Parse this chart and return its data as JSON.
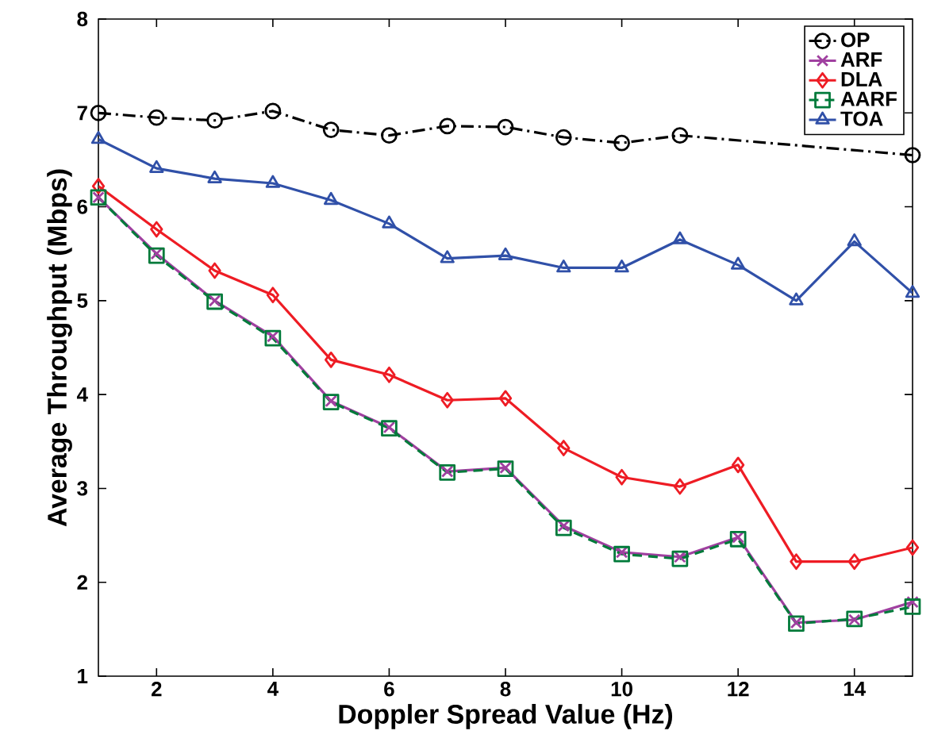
{
  "chart_data": {
    "type": "line",
    "xlabel": "Doppler Spread Value (Hz)",
    "ylabel": "Average Throughput (Mbps)",
    "x": [
      1,
      2,
      3,
      4,
      5,
      6,
      7,
      8,
      9,
      10,
      11,
      12,
      13,
      14,
      15
    ],
    "xlim": [
      1,
      15
    ],
    "xticks": [
      2,
      4,
      6,
      8,
      10,
      12,
      14
    ],
    "ylim": [
      1,
      8
    ],
    "yticks": [
      1,
      2,
      3,
      4,
      5,
      6,
      7,
      8
    ],
    "grid": false,
    "legend": "top right",
    "series": [
      {
        "name": "OP",
        "color": "#000000",
        "marker": "circle",
        "line_style": "dashdot",
        "values": [
          7.0,
          6.95,
          6.92,
          7.02,
          6.82,
          6.76,
          6.86,
          6.85,
          6.74,
          6.68,
          6.76,
          null,
          null,
          null,
          6.55
        ]
      },
      {
        "name": "ARF",
        "color": "#a040a0",
        "marker": "cross",
        "line_style": "solid",
        "values": [
          6.1,
          5.5,
          5.0,
          4.62,
          3.93,
          3.65,
          3.18,
          3.22,
          2.6,
          2.32,
          2.27,
          2.48,
          1.57,
          1.6,
          1.79
        ]
      },
      {
        "name": "DLA",
        "color": "#ee1c24",
        "marker": "diamond",
        "line_style": "solid",
        "values": [
          6.22,
          5.76,
          5.32,
          5.06,
          4.37,
          4.21,
          3.94,
          3.96,
          3.43,
          3.12,
          3.02,
          3.25,
          2.22,
          2.22,
          2.37
        ]
      },
      {
        "name": "AARF",
        "color": "#007a3a",
        "marker": "square",
        "line_style": "dashed",
        "values": [
          6.1,
          5.48,
          4.99,
          4.6,
          3.92,
          3.64,
          3.17,
          3.21,
          2.58,
          2.3,
          2.25,
          2.46,
          1.56,
          1.61,
          1.74
        ]
      },
      {
        "name": "TOA",
        "color": "#3050a8",
        "marker": "triangle",
        "line_style": "solid",
        "values": [
          6.72,
          6.41,
          6.3,
          6.25,
          6.07,
          5.82,
          5.45,
          5.48,
          5.35,
          5.35,
          5.65,
          5.38,
          5.0,
          5.63,
          5.08
        ]
      }
    ]
  }
}
